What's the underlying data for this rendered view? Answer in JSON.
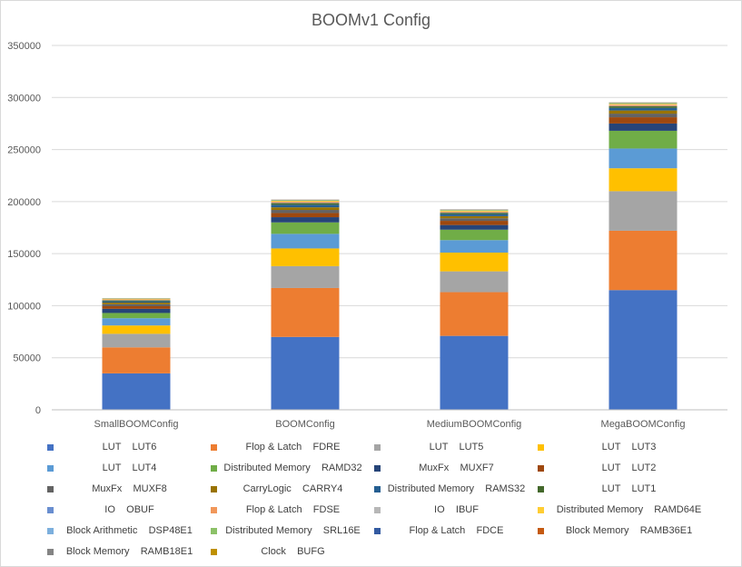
{
  "chart_data": {
    "type": "bar",
    "stacked": true,
    "title": "BOOMv1 Config",
    "xlabel": "",
    "ylabel": "",
    "categories": [
      "SmallBOOMConfig",
      "BOOMConfig",
      "MediumBOOMConfig",
      "MegaBOOMConfig"
    ],
    "ylim": [
      0,
      350000
    ],
    "yticks": [
      "0",
      "50000",
      "100000",
      "150000",
      "200000",
      "250000",
      "300000",
      "350000"
    ],
    "grid": true,
    "legend_position": "bottom",
    "series": [
      {
        "name": "LUT    LUT6",
        "color": "#4472C4",
        "values": [
          35000,
          70000,
          71000,
          115000
        ]
      },
      {
        "name": "Flop & Latch    FDRE",
        "color": "#ED7D31",
        "values": [
          25000,
          47000,
          42000,
          57000
        ]
      },
      {
        "name": "LUT    LUT5",
        "color": "#A5A5A5",
        "values": [
          13000,
          21000,
          20000,
          38000
        ]
      },
      {
        "name": "LUT    LUT3",
        "color": "#FFC000",
        "values": [
          8000,
          17000,
          18000,
          22000
        ]
      },
      {
        "name": "LUT    LUT4",
        "color": "#5B9BD5",
        "values": [
          7000,
          14000,
          12000,
          19000
        ]
      },
      {
        "name": "Distributed Memory    RAMD32",
        "color": "#70AD47",
        "values": [
          5000,
          11000,
          10000,
          17000
        ]
      },
      {
        "name": "MuxFx    MUXF7",
        "color": "#264478",
        "values": [
          4000,
          5000,
          4500,
          7000
        ]
      },
      {
        "name": "LUT    LUT2",
        "color": "#9E480E",
        "values": [
          2500,
          4000,
          4000,
          6000
        ]
      },
      {
        "name": "MuxFx    MUXF8",
        "color": "#636363",
        "values": [
          2000,
          3000,
          2500,
          3500
        ]
      },
      {
        "name": "CarryLogic    CARRY4",
        "color": "#997300",
        "values": [
          1500,
          2500,
          2000,
          3000
        ]
      },
      {
        "name": "Distributed Memory    RAMS32",
        "color": "#255E91",
        "values": [
          1200,
          2500,
          2000,
          2500
        ]
      },
      {
        "name": "LUT    LUT1",
        "color": "#43682B",
        "values": [
          900,
          1500,
          1200,
          1500
        ]
      },
      {
        "name": "IO    OBUF",
        "color": "#698ED0",
        "values": [
          300,
          300,
          300,
          300
        ]
      },
      {
        "name": "Flop & Latch    FDSE",
        "color": "#F1975A",
        "values": [
          600,
          1000,
          900,
          1200
        ]
      },
      {
        "name": "IO    IBUF",
        "color": "#B7B7B7",
        "values": [
          100,
          100,
          100,
          100
        ]
      },
      {
        "name": "Distributed Memory    RAMD64E",
        "color": "#FFCD33",
        "values": [
          500,
          800,
          800,
          800
        ]
      },
      {
        "name": "Block Arithmetic    DSP48E1",
        "color": "#7CAFDD",
        "values": [
          100,
          150,
          150,
          150
        ]
      },
      {
        "name": "Distributed Memory    SRL16E",
        "color": "#8CC168",
        "values": [
          300,
          600,
          600,
          700
        ]
      },
      {
        "name": "Flop & Latch    FDCE",
        "color": "#335AA1",
        "values": [
          100,
          200,
          200,
          200
        ]
      },
      {
        "name": "Block Memory    RAMB36E1",
        "color": "#C55A11",
        "values": [
          100,
          150,
          150,
          200
        ]
      },
      {
        "name": "Block Memory    RAMB18E1",
        "color": "#848484",
        "values": [
          50,
          100,
          100,
          100
        ]
      },
      {
        "name": "Clock    BUFG",
        "color": "#BF9000",
        "values": [
          10,
          10,
          10,
          10
        ]
      }
    ]
  }
}
